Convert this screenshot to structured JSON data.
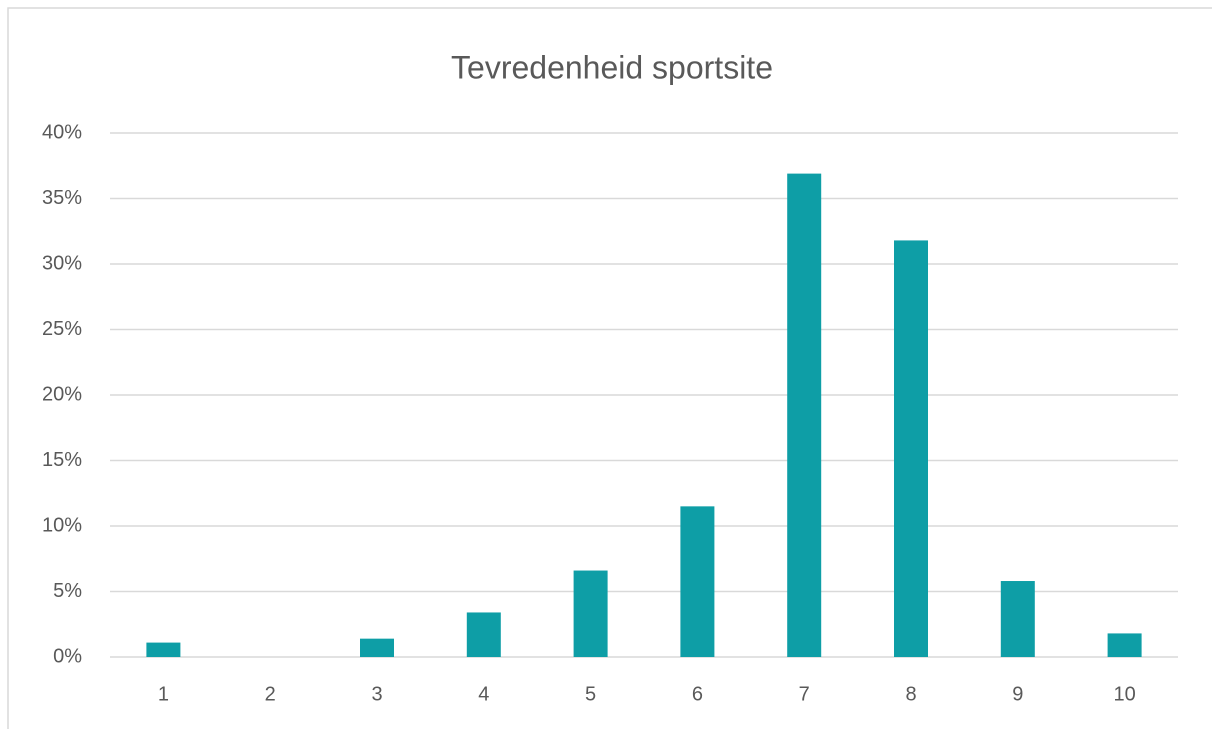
{
  "chart_data": {
    "type": "bar",
    "title": "Tevredenheid sportsite",
    "categories": [
      "1",
      "2",
      "3",
      "4",
      "5",
      "6",
      "7",
      "8",
      "9",
      "10"
    ],
    "values": [
      1.1,
      0,
      1.4,
      3.4,
      6.6,
      11.5,
      36.9,
      31.8,
      5.8,
      1.8
    ],
    "color": "#0e9ea6",
    "ylim": [
      0,
      40
    ],
    "yticks": [
      {
        "value": 0,
        "label": "0%"
      },
      {
        "value": 5,
        "label": "5%"
      },
      {
        "value": 10,
        "label": "10%"
      },
      {
        "value": 15,
        "label": "15%"
      },
      {
        "value": 20,
        "label": "20%"
      },
      {
        "value": 25,
        "label": "25%"
      },
      {
        "value": 30,
        "label": "30%"
      },
      {
        "value": 35,
        "label": "35%"
      },
      {
        "value": 40,
        "label": "40%"
      }
    ],
    "grid": true
  }
}
